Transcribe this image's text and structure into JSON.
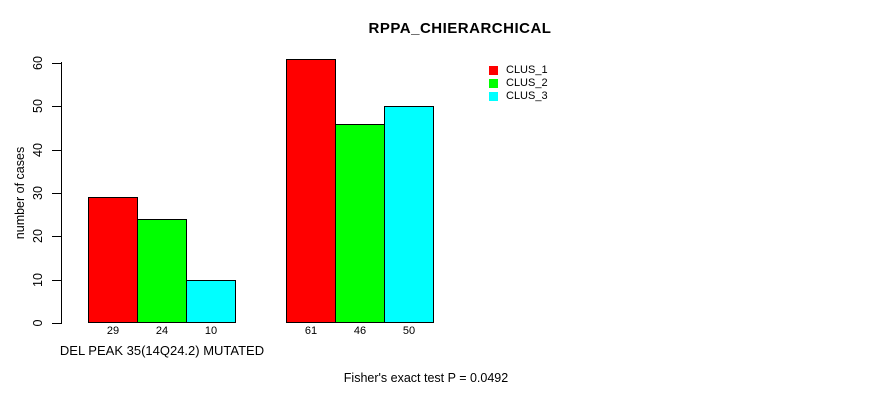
{
  "chart_data": {
    "type": "bar",
    "title": "RPPA_CHIERARCHICAL",
    "ylabel": "number of cases",
    "xlabel": "DEL PEAK 35(14Q24.2) MUTATED",
    "ylim": [
      0,
      60
    ],
    "yticks": [
      0,
      10,
      20,
      30,
      40,
      50,
      60
    ],
    "grid": false,
    "legend_position": "top-right",
    "legend": [
      {
        "label": "CLUS_1",
        "color": "#FF0000"
      },
      {
        "label": "CLUS_2",
        "color": "#00FF00"
      },
      {
        "label": "CLUS_3",
        "color": "#00FFFF"
      }
    ],
    "groups": [
      {
        "label": "DEL PEAK 35(14Q24.2) MUTATED",
        "values": [
          29,
          24,
          10
        ]
      },
      {
        "label": "",
        "values": [
          61,
          46,
          50
        ]
      }
    ],
    "series": [
      {
        "name": "CLUS_1",
        "values": [
          29,
          61
        ]
      },
      {
        "name": "CLUS_2",
        "values": [
          24,
          46
        ]
      },
      {
        "name": "CLUS_3",
        "values": [
          10,
          50
        ]
      }
    ],
    "bar_border_color": "#000000",
    "annotation": "Fisher's exact test P = 0.0492"
  }
}
